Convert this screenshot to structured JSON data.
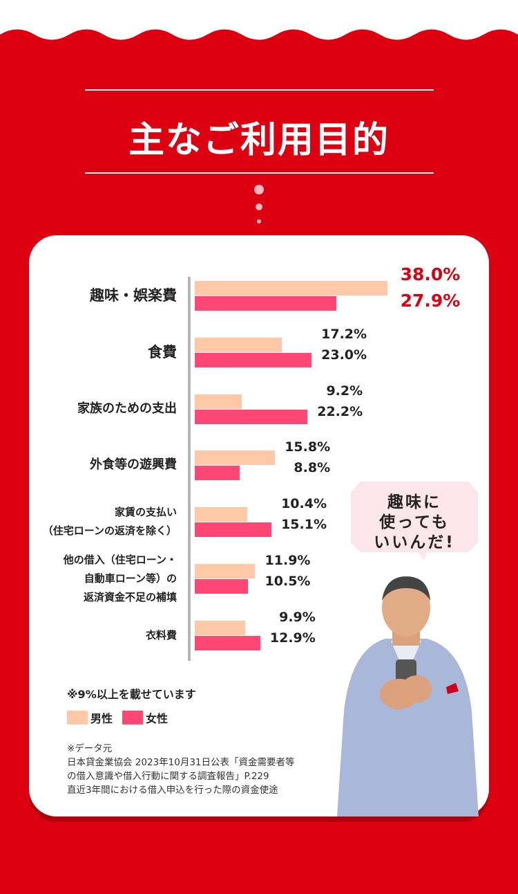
{
  "header": {
    "title": "主なご利用目的"
  },
  "chart_data": {
    "type": "bar",
    "orientation": "horizontal",
    "categories": [
      "趣味・娯楽費",
      "食費",
      "家族のための支出",
      "外食等の遊興費",
      "家賃の支払い\n（住宅ローンの返済を除く）",
      "他の借入（住宅ローン・\n自動車ローン等）の\n返済資金不足の補填",
      "衣料費"
    ],
    "series": [
      {
        "name": "男性",
        "color": "#ffc9a8",
        "values": [
          38.0,
          17.2,
          9.2,
          15.8,
          10.4,
          11.9,
          9.9
        ],
        "labels": [
          "38.0%",
          "17.2%",
          "9.2%",
          "15.8%",
          "10.4%",
          "11.9%",
          "9.9%"
        ]
      },
      {
        "name": "女性",
        "color": "#ff4674",
        "values": [
          27.9,
          23.0,
          22.2,
          8.8,
          15.1,
          10.5,
          12.9
        ],
        "labels": [
          "27.9%",
          "23.0%",
          "22.2%",
          "8.8%",
          "15.1%",
          "10.5%",
          "12.9%"
        ]
      }
    ],
    "unit": "%",
    "legend_position": "bottom-left",
    "highlight_color": "#dc0011"
  },
  "note": "※9%以上を載せています",
  "legend": {
    "male": "男性",
    "female": "女性"
  },
  "source": {
    "lines": [
      "※データ元",
      "日本貸金業協会 2023年10月31日公表「資金需要者等",
      "の借入意識や借入行動に関する調査報告」P.229",
      "直近3年間における借入申込を行った際の資金使途"
    ]
  },
  "bubble": {
    "lines": [
      "趣味に",
      "使っても",
      "いいんだ!"
    ]
  },
  "colors": {
    "background": "#dc0011",
    "card": "#ffffff",
    "bubble": "#fde6eb"
  }
}
